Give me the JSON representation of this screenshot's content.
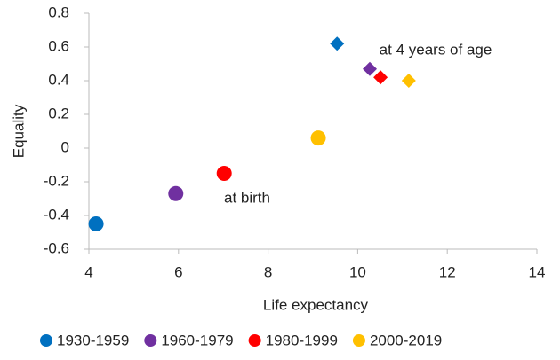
{
  "chart_data": {
    "type": "scatter",
    "xlabel": "Life expectancy",
    "ylabel": "Equality",
    "xlim": [
      4,
      14
    ],
    "xticks": [
      4,
      6,
      8,
      10,
      12,
      14
    ],
    "ylim": [
      -0.6,
      0.8
    ],
    "yticks": [
      -0.6,
      -0.4,
      -0.2,
      0,
      0.2,
      0.4,
      0.6,
      0.8
    ],
    "groups": [
      {
        "label": "at birth",
        "marker": "circle"
      },
      {
        "label": "at 4 years of age",
        "marker": "diamond"
      }
    ],
    "series": [
      {
        "name": "1930-1959",
        "color": "#0070c0",
        "x": [
          4.16,
          9.54
        ],
        "values": [
          -0.45,
          0.62
        ]
      },
      {
        "name": "1960-1979",
        "color": "#7030a0",
        "x": [
          5.94,
          10.27
        ],
        "values": [
          -0.27,
          0.47
        ]
      },
      {
        "name": "1980-1999",
        "color": "#ff0000",
        "x": [
          7.02,
          10.51
        ],
        "values": [
          -0.15,
          0.42
        ]
      },
      {
        "name": "2000-2019",
        "color": "#ffc000",
        "x": [
          9.12,
          11.14
        ],
        "values": [
          0.06,
          0.4
        ]
      }
    ]
  }
}
